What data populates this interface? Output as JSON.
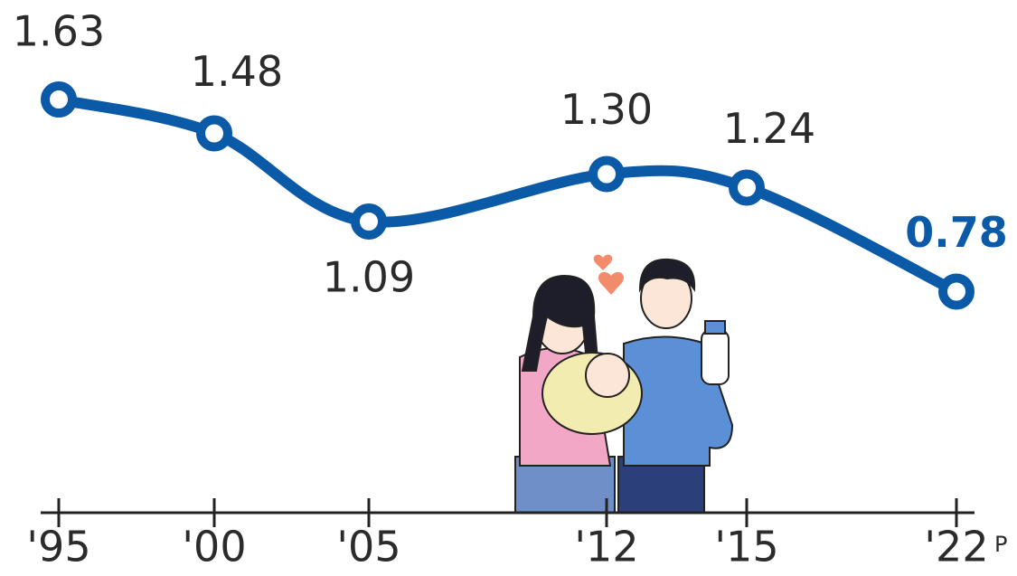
{
  "chart_data": {
    "type": "line",
    "categories": [
      "'95",
      "'00",
      "'05",
      "'12",
      "'15",
      "'22"
    ],
    "values": [
      1.63,
      1.48,
      1.09,
      1.3,
      1.24,
      0.78
    ],
    "value_labels": [
      "1.63",
      "1.48",
      "1.09",
      "1.30",
      "1.24",
      "0.78"
    ],
    "color": "#0b5aa8",
    "annotation": "P"
  }
}
